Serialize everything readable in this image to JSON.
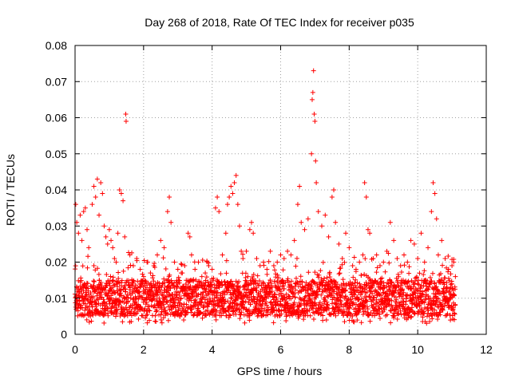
{
  "chart_data": {
    "type": "scatter",
    "title": "Day 268 of 2018, Rate Of TEC Index for receiver p035",
    "xlabel": "GPS time / hours",
    "ylabel": "ROTI / TECUs",
    "xlim": [
      0,
      12
    ],
    "ylim": [
      0,
      0.08
    ],
    "xticks": [
      0,
      2,
      4,
      6,
      8,
      10,
      12
    ],
    "xtick_labels": [
      "0",
      "2",
      "4",
      "6",
      "8",
      "10",
      "12"
    ],
    "yticks": [
      0,
      0.01,
      0.02,
      0.03,
      0.04,
      0.05,
      0.06,
      0.07,
      0.08
    ],
    "ytick_labels": [
      "0",
      "0.01",
      "0.02",
      "0.03",
      "0.04",
      "0.05",
      "0.06",
      "0.07",
      "0.08"
    ],
    "grid": true,
    "marker": "+",
    "color": "#ff0000",
    "data_range_hours": [
      0,
      11.1
    ],
    "typical_roti_range": [
      0.005,
      0.015
    ],
    "series": [
      {
        "name": "ROTI",
        "points": [
          [
            0.02,
            0.036
          ],
          [
            0.05,
            0.031
          ],
          [
            0.1,
            0.028
          ],
          [
            0.15,
            0.033
          ],
          [
            0.2,
            0.026
          ],
          [
            0.25,
            0.034
          ],
          [
            0.3,
            0.035
          ],
          [
            0.35,
            0.029
          ],
          [
            0.4,
            0.024
          ],
          [
            0.5,
            0.036
          ],
          [
            0.55,
            0.041
          ],
          [
            0.6,
            0.038
          ],
          [
            0.65,
            0.043
          ],
          [
            0.7,
            0.033
          ],
          [
            0.75,
            0.042
          ],
          [
            0.8,
            0.039
          ],
          [
            0.85,
            0.03
          ],
          [
            0.9,
            0.027
          ],
          [
            0.95,
            0.025
          ],
          [
            1.0,
            0.029
          ],
          [
            1.05,
            0.026
          ],
          [
            1.1,
            0.024
          ],
          [
            1.15,
            0.021
          ],
          [
            1.2,
            0.02
          ],
          [
            1.25,
            0.028
          ],
          [
            1.3,
            0.04
          ],
          [
            1.35,
            0.039
          ],
          [
            1.4,
            0.037
          ],
          [
            1.45,
            0.027
          ],
          [
            1.48,
            0.061
          ],
          [
            1.49,
            0.059
          ],
          [
            1.6,
            0.022
          ],
          [
            1.7,
            0.019
          ],
          [
            1.8,
            0.021
          ],
          [
            1.9,
            0.018
          ],
          [
            2.0,
            0.016
          ],
          [
            2.1,
            0.02
          ],
          [
            2.2,
            0.017
          ],
          [
            2.3,
            0.019
          ],
          [
            2.4,
            0.022
          ],
          [
            2.5,
            0.026
          ],
          [
            2.6,
            0.024
          ],
          [
            2.7,
            0.034
          ],
          [
            2.75,
            0.038
          ],
          [
            2.8,
            0.031
          ],
          [
            2.9,
            0.02
          ],
          [
            3.0,
            0.018
          ],
          [
            3.1,
            0.017
          ],
          [
            3.2,
            0.019
          ],
          [
            3.3,
            0.028
          ],
          [
            3.35,
            0.027
          ],
          [
            3.4,
            0.022
          ],
          [
            3.5,
            0.018
          ],
          [
            3.6,
            0.02
          ],
          [
            3.7,
            0.016
          ],
          [
            3.8,
            0.017
          ],
          [
            3.9,
            0.019
          ],
          [
            4.0,
            0.018
          ],
          [
            4.1,
            0.035
          ],
          [
            4.15,
            0.038
          ],
          [
            4.2,
            0.034
          ],
          [
            4.3,
            0.022
          ],
          [
            4.4,
            0.028
          ],
          [
            4.45,
            0.036
          ],
          [
            4.5,
            0.038
          ],
          [
            4.55,
            0.041
          ],
          [
            4.6,
            0.039
          ],
          [
            4.65,
            0.042
          ],
          [
            4.7,
            0.044
          ],
          [
            4.75,
            0.036
          ],
          [
            4.8,
            0.03
          ],
          [
            4.85,
            0.023
          ],
          [
            4.9,
            0.021
          ],
          [
            5.0,
            0.023
          ],
          [
            5.1,
            0.029
          ],
          [
            5.15,
            0.031
          ],
          [
            5.2,
            0.028
          ],
          [
            5.3,
            0.021
          ],
          [
            5.4,
            0.019
          ],
          [
            5.5,
            0.02
          ],
          [
            5.6,
            0.018
          ],
          [
            5.7,
            0.023
          ],
          [
            5.8,
            0.019
          ],
          [
            5.9,
            0.02
          ],
          [
            6.0,
            0.022
          ],
          [
            6.1,
            0.021
          ],
          [
            6.2,
            0.023
          ],
          [
            6.3,
            0.022
          ],
          [
            6.4,
            0.026
          ],
          [
            6.5,
            0.036
          ],
          [
            6.55,
            0.041
          ],
          [
            6.6,
            0.031
          ],
          [
            6.7,
            0.029
          ],
          [
            6.8,
            0.032
          ],
          [
            6.9,
            0.05
          ],
          [
            6.92,
            0.065
          ],
          [
            6.94,
            0.067
          ],
          [
            6.96,
            0.073
          ],
          [
            6.98,
            0.061
          ],
          [
            7.0,
            0.059
          ],
          [
            7.02,
            0.048
          ],
          [
            7.04,
            0.042
          ],
          [
            7.1,
            0.034
          ],
          [
            7.2,
            0.03
          ],
          [
            7.3,
            0.033
          ],
          [
            7.4,
            0.027
          ],
          [
            7.5,
            0.038
          ],
          [
            7.55,
            0.04
          ],
          [
            7.6,
            0.031
          ],
          [
            7.7,
            0.025
          ],
          [
            7.8,
            0.021
          ],
          [
            7.9,
            0.028
          ],
          [
            8.0,
            0.024
          ],
          [
            8.1,
            0.019
          ],
          [
            8.2,
            0.018
          ],
          [
            8.3,
            0.02
          ],
          [
            8.4,
            0.022
          ],
          [
            8.45,
            0.042
          ],
          [
            8.5,
            0.038
          ],
          [
            8.55,
            0.029
          ],
          [
            8.6,
            0.028
          ],
          [
            8.7,
            0.021
          ],
          [
            8.8,
            0.022
          ],
          [
            8.9,
            0.019
          ],
          [
            9.0,
            0.02
          ],
          [
            9.1,
            0.023
          ],
          [
            9.2,
            0.031
          ],
          [
            9.3,
            0.026
          ],
          [
            9.4,
            0.021
          ],
          [
            9.5,
            0.019
          ],
          [
            9.6,
            0.022
          ],
          [
            9.7,
            0.02
          ],
          [
            9.8,
            0.026
          ],
          [
            9.9,
            0.025
          ],
          [
            10.0,
            0.021
          ],
          [
            10.1,
            0.028
          ],
          [
            10.2,
            0.02
          ],
          [
            10.3,
            0.024
          ],
          [
            10.4,
            0.034
          ],
          [
            10.45,
            0.042
          ],
          [
            10.5,
            0.039
          ],
          [
            10.55,
            0.032
          ],
          [
            10.6,
            0.022
          ],
          [
            10.7,
            0.026
          ],
          [
            10.8,
            0.021
          ],
          [
            10.9,
            0.018
          ],
          [
            11.0,
            0.019
          ],
          [
            11.05,
            0.02
          ],
          [
            11.1,
            0.016
          ]
        ]
      }
    ]
  }
}
